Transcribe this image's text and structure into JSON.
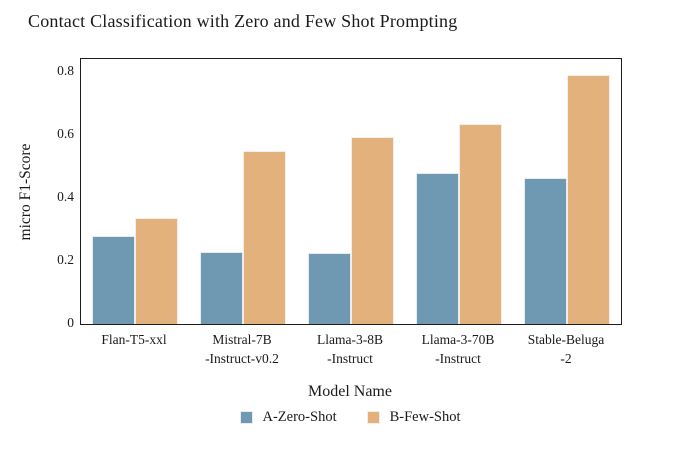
{
  "title": "Contact Classification with Zero and Few Shot Prompting",
  "chart_data": {
    "type": "bar",
    "categories": [
      [
        "Flan-T5-xxl"
      ],
      [
        "Mistral-7B",
        "-Instruct-v0.2"
      ],
      [
        "Llama-3-8B",
        "-Instruct"
      ],
      [
        "Llama-3-70B",
        "-Instruct"
      ],
      [
        "Stable-Beluga",
        "-2"
      ]
    ],
    "series": [
      {
        "name": "A-Zero-Shot",
        "color": "#6f98b2",
        "values": [
          0.28,
          0.23,
          0.225,
          0.48,
          0.465
        ]
      },
      {
        "name": "B-Few-Shot",
        "color": "#e2b17c",
        "values": [
          0.335,
          0.55,
          0.595,
          0.635,
          0.79
        ]
      }
    ],
    "title": "Contact Classification with Zero and Few Shot Prompting",
    "xlabel": "Model Name",
    "ylabel": "micro F1-Score",
    "yticks": [
      0,
      0.2,
      0.4,
      0.6,
      0.8
    ],
    "ytick_labels": [
      "0",
      "0.2",
      "0.4",
      "0.6",
      "0.8"
    ],
    "ylim": [
      0,
      0.8413
    ],
    "grid": false,
    "legend_position": "bottom",
    "bar_edge_color": "#f5f5f5",
    "axis_color": "#1c1c1c"
  }
}
